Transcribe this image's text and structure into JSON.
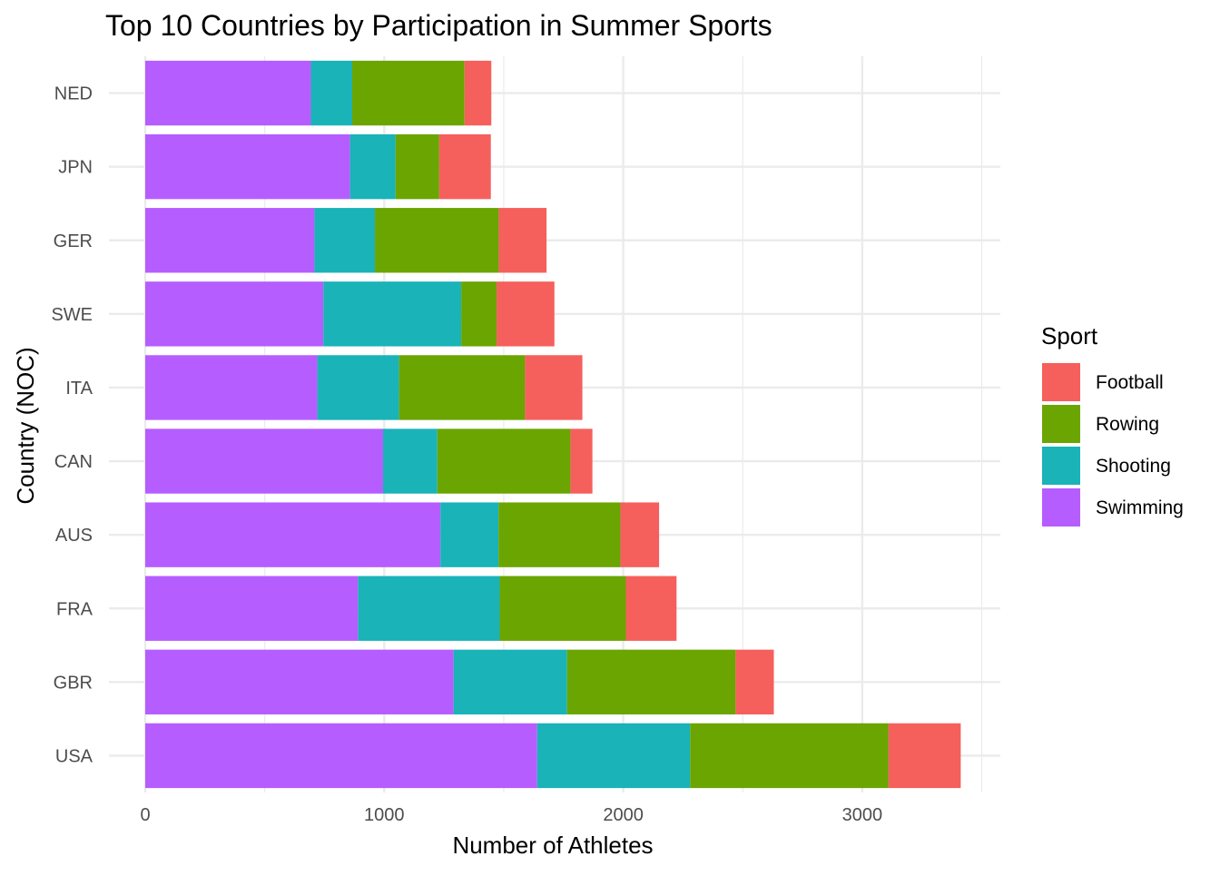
{
  "chart_data": {
    "type": "bar",
    "orientation": "horizontal",
    "stacked": true,
    "title": "Top 10 Countries by Participation in Summer Sports",
    "xlabel": "Number of Athletes",
    "ylabel": "Country (NOC)",
    "xlim": [
      0,
      3550
    ],
    "x_ticks": [
      0,
      1000,
      2000,
      3000
    ],
    "x_tick_labels": [
      "0",
      "1000",
      "2000",
      "3000"
    ],
    "grid": true,
    "legend_position": "right",
    "categories": [
      "USA",
      "GBR",
      "FRA",
      "AUS",
      "CAN",
      "ITA",
      "SWE",
      "GER",
      "JPN",
      "NED"
    ],
    "legend": {
      "title": "Sport",
      "items": [
        "Football",
        "Rowing",
        "Shooting",
        "Swimming"
      ]
    },
    "series": [
      {
        "name": "Swimming",
        "color": "#B65DFF",
        "values": [
          1640,
          1290,
          890,
          1235,
          995,
          720,
          745,
          708,
          857,
          693
        ]
      },
      {
        "name": "Shooting",
        "color": "#19B3B8",
        "values": [
          640,
          475,
          593,
          243,
          227,
          342,
          577,
          253,
          190,
          173
        ]
      },
      {
        "name": "Rowing",
        "color": "#6BA502",
        "values": [
          830,
          705,
          528,
          510,
          557,
          527,
          148,
          518,
          183,
          470
        ]
      },
      {
        "name": "Football",
        "color": "#F5605C",
        "values": [
          302,
          160,
          212,
          162,
          92,
          240,
          242,
          200,
          216,
          112
        ]
      }
    ]
  }
}
